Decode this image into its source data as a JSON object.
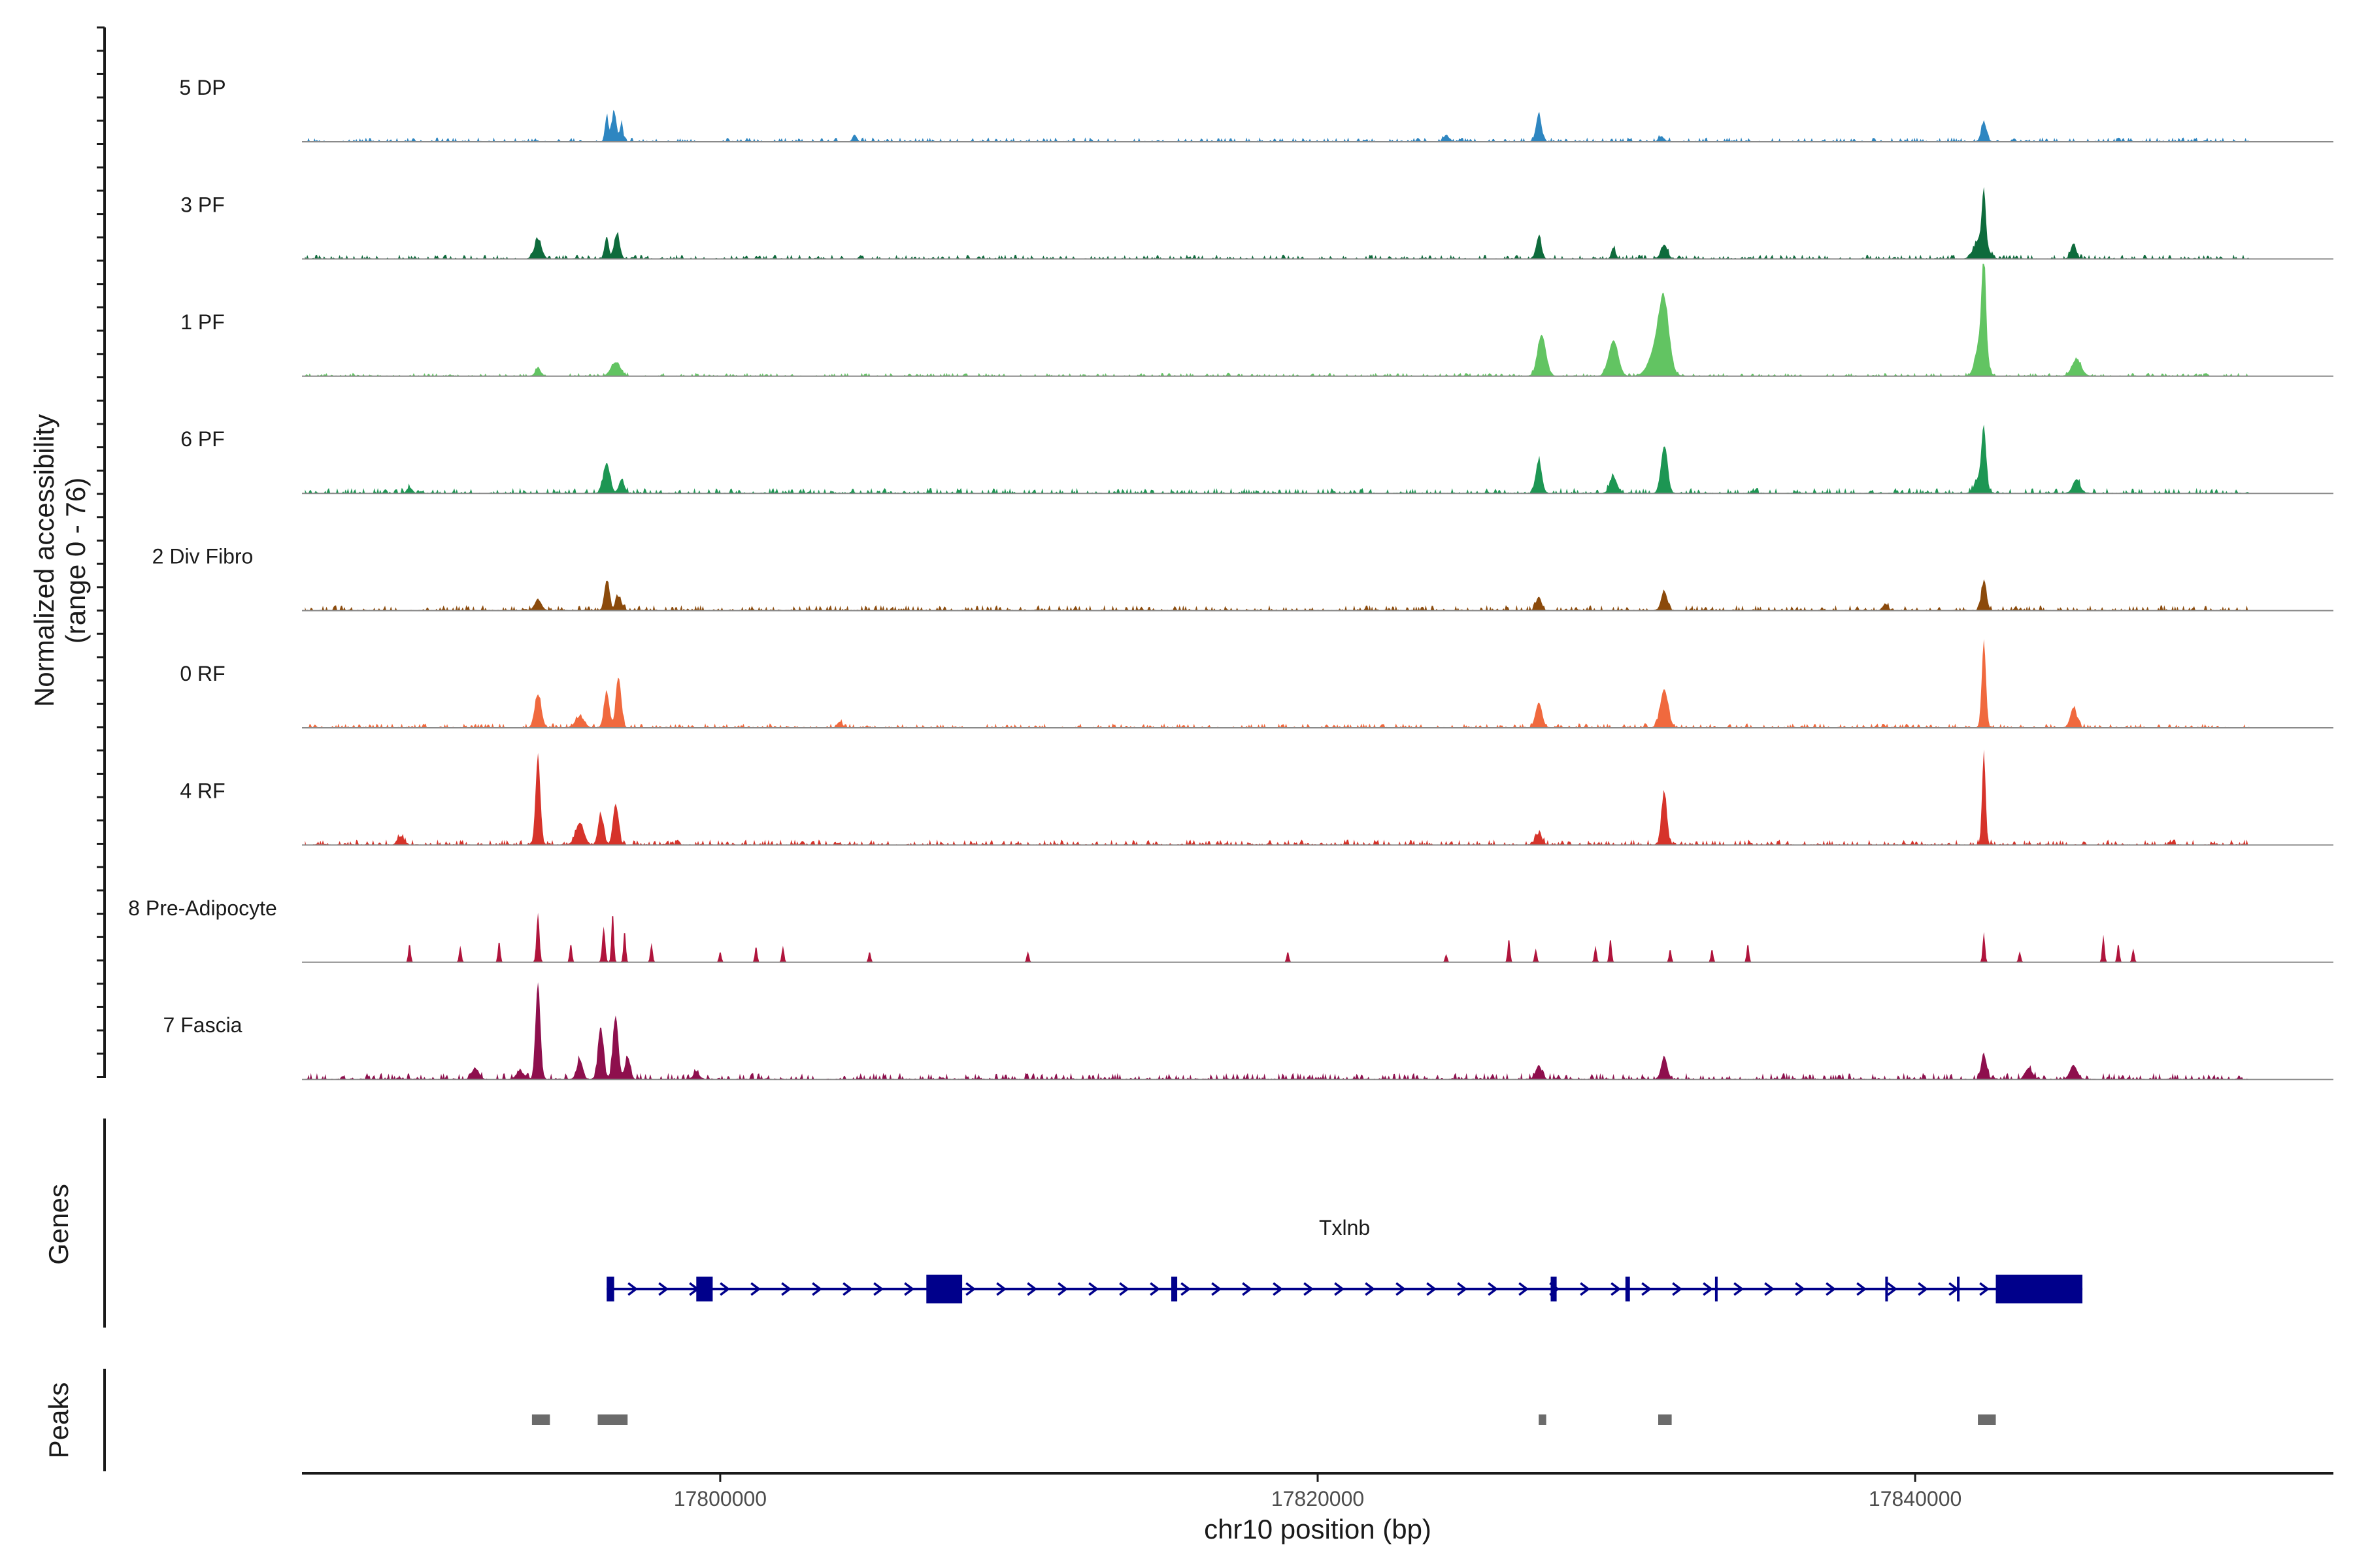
{
  "chart_data": {
    "type": "area",
    "title": "",
    "region": "chr10",
    "xlabel": "chr10 position (bp)",
    "ylabel": [
      "Normalized accessibility",
      "(range 0 - 76)"
    ],
    "y_range": [
      0,
      76
    ],
    "xlim": [
      17786000,
      17854000
    ],
    "x_ticks": [
      17800000,
      17820000,
      17840000
    ],
    "x_tick_labels": [
      "17800000",
      "17820000",
      "17840000"
    ],
    "track_span": [
      17786100,
      17851200
    ],
    "tracks": [
      {
        "name": "5 DP",
        "color": "#2e86c1",
        "peaks": [
          [
            17796200,
            18,
            60
          ],
          [
            17796450,
            22,
            80
          ],
          [
            17796700,
            14,
            50
          ],
          [
            17827400,
            20,
            90
          ],
          [
            17842300,
            14,
            90
          ],
          [
            17804500,
            5,
            70
          ],
          [
            17824300,
            5,
            80
          ],
          [
            17831500,
            4,
            90
          ]
        ],
        "bg": 2
      },
      {
        "name": "3 PF",
        "color": "#0e6b3c",
        "peaks": [
          [
            17793900,
            14,
            120
          ],
          [
            17796200,
            16,
            70
          ],
          [
            17796550,
            18,
            90
          ],
          [
            17827400,
            16,
            90
          ],
          [
            17829900,
            8,
            70
          ],
          [
            17831600,
            10,
            110
          ],
          [
            17842300,
            38,
            60
          ],
          [
            17842200,
            16,
            200
          ],
          [
            17845300,
            11,
            90
          ]
        ],
        "bg": 2
      },
      {
        "name": "1 PF",
        "color": "#62c462",
        "peaks": [
          [
            17793900,
            6,
            90
          ],
          [
            17796500,
            10,
            160
          ],
          [
            17827500,
            30,
            140
          ],
          [
            17829900,
            26,
            160
          ],
          [
            17831600,
            40,
            160
          ],
          [
            17831400,
            24,
            260
          ],
          [
            17842300,
            68,
            70
          ],
          [
            17842200,
            28,
            160
          ],
          [
            17845400,
            12,
            160
          ]
        ],
        "bg": 1.5
      },
      {
        "name": "6 PF",
        "color": "#1d9653",
        "peaks": [
          [
            17796200,
            22,
            110
          ],
          [
            17796700,
            10,
            90
          ],
          [
            17827400,
            24,
            100
          ],
          [
            17829900,
            12,
            120
          ],
          [
            17831600,
            34,
            110
          ],
          [
            17842300,
            38,
            70
          ],
          [
            17842200,
            14,
            160
          ],
          [
            17845400,
            10,
            120
          ],
          [
            17789600,
            4,
            90
          ]
        ],
        "bg": 2.5
      },
      {
        "name": "2 Div Fibro",
        "color": "#8b4a0b",
        "peaks": [
          [
            17793900,
            8,
            110
          ],
          [
            17796200,
            22,
            80
          ],
          [
            17796600,
            10,
            100
          ],
          [
            17827400,
            10,
            90
          ],
          [
            17831600,
            14,
            100
          ],
          [
            17842300,
            20,
            90
          ],
          [
            17839000,
            5,
            80
          ]
        ],
        "bg": 2.5
      },
      {
        "name": "0 RF",
        "color": "#f0693e",
        "peaks": [
          [
            17793900,
            24,
            110
          ],
          [
            17795300,
            8,
            150
          ],
          [
            17796200,
            26,
            90
          ],
          [
            17796600,
            36,
            90
          ],
          [
            17827400,
            18,
            110
          ],
          [
            17831600,
            28,
            130
          ],
          [
            17842300,
            62,
            70
          ],
          [
            17845300,
            14,
            110
          ],
          [
            17804000,
            4,
            90
          ]
        ],
        "bg": 2
      },
      {
        "name": "4 RF",
        "color": "#d6332a",
        "peaks": [
          [
            17793900,
            64,
            80
          ],
          [
            17795300,
            16,
            140
          ],
          [
            17796000,
            22,
            90
          ],
          [
            17796500,
            30,
            90
          ],
          [
            17827400,
            8,
            110
          ],
          [
            17831600,
            38,
            90
          ],
          [
            17842300,
            66,
            60
          ],
          [
            17789300,
            6,
            110
          ]
        ],
        "bg": 2.5
      },
      {
        "name": "8 Pre-Adipocyte",
        "color": "#b0143c",
        "peaks": [
          [
            17789600,
            14,
            40
          ],
          [
            17791300,
            12,
            40
          ],
          [
            17792600,
            16,
            40
          ],
          [
            17793900,
            36,
            50
          ],
          [
            17795000,
            14,
            40
          ],
          [
            17796100,
            26,
            50
          ],
          [
            17796400,
            38,
            40
          ],
          [
            17796800,
            24,
            40
          ],
          [
            17797700,
            14,
            40
          ],
          [
            17800000,
            8,
            40
          ],
          [
            17801200,
            12,
            40
          ],
          [
            17802100,
            12,
            40
          ],
          [
            17805000,
            8,
            40
          ],
          [
            17810300,
            8,
            40
          ],
          [
            17819000,
            8,
            40
          ],
          [
            17824300,
            6,
            40
          ],
          [
            17826400,
            18,
            40
          ],
          [
            17827300,
            10,
            40
          ],
          [
            17829300,
            12,
            40
          ],
          [
            17829800,
            18,
            40
          ],
          [
            17831800,
            10,
            40
          ],
          [
            17833200,
            10,
            40
          ],
          [
            17834400,
            14,
            40
          ],
          [
            17842300,
            22,
            40
          ],
          [
            17843500,
            8,
            40
          ],
          [
            17846300,
            20,
            40
          ],
          [
            17846800,
            14,
            40
          ],
          [
            17847300,
            10,
            40
          ]
        ],
        "bg": 0
      },
      {
        "name": "7 Fascia",
        "color": "#8e0f4d",
        "peaks": [
          [
            17791800,
            8,
            120
          ],
          [
            17793300,
            6,
            120
          ],
          [
            17793900,
            70,
            80
          ],
          [
            17795300,
            14,
            100
          ],
          [
            17796000,
            38,
            90
          ],
          [
            17796500,
            46,
            90
          ],
          [
            17796900,
            16,
            90
          ],
          [
            17799200,
            6,
            90
          ],
          [
            17827400,
            10,
            100
          ],
          [
            17831600,
            16,
            100
          ],
          [
            17842300,
            18,
            90
          ],
          [
            17843800,
            8,
            120
          ],
          [
            17845300,
            10,
            120
          ]
        ],
        "bg": 3
      }
    ],
    "genes": [
      {
        "name": "Txlnb",
        "strand": "+",
        "start": 17796200,
        "end": 17845600,
        "exons": [
          [
            17796200,
            17796450
          ],
          [
            17799200,
            17799750
          ],
          [
            17806900,
            17808100
          ],
          [
            17815100,
            17815300
          ],
          [
            17827800,
            17828000
          ],
          [
            17830300,
            17830450
          ],
          [
            17833300,
            17833350
          ],
          [
            17839000,
            17839050
          ],
          [
            17841400,
            17841450
          ],
          [
            17842700,
            17845600
          ]
        ]
      }
    ],
    "peaks_track": [
      [
        17793700,
        17794300
      ],
      [
        17795900,
        17796900
      ],
      [
        17827400,
        17827650
      ],
      [
        17831400,
        17831850
      ],
      [
        17842100,
        17842700
      ]
    ],
    "panel_labels": [
      "Genes",
      "Peaks"
    ]
  }
}
